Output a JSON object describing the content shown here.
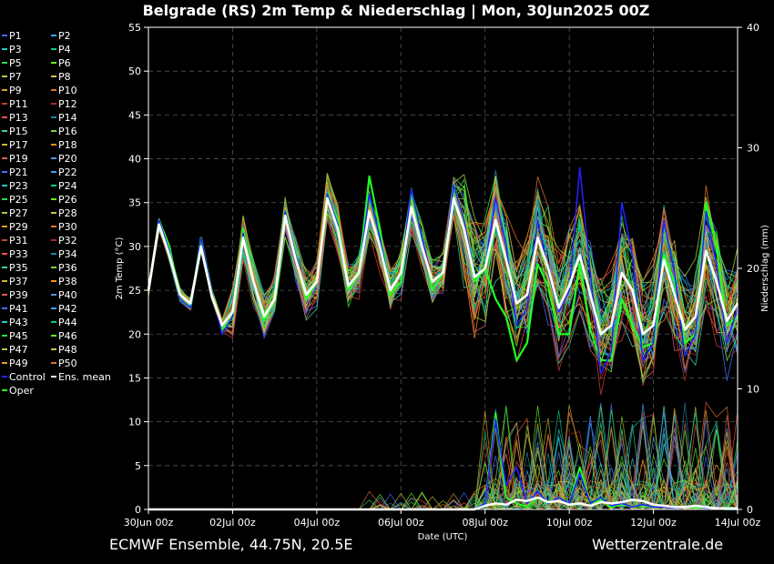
{
  "chart_data": {
    "type": "line",
    "title": "Belgrade  (RS)  2m Temp & Niederschlag | Mon, 30Jun2025 00Z",
    "xlabel": "Date (UTC)",
    "ylabel_left": "2m Temp (°C)",
    "ylabel_right": "Niederschlag (mm)",
    "ylim_left": [
      0,
      55
    ],
    "ylim_right": [
      0,
      40
    ],
    "yticks_left": [
      "0",
      "5",
      "10",
      "15",
      "20",
      "25",
      "30",
      "35",
      "40",
      "45",
      "50",
      "55"
    ],
    "yticks_right": [
      "0",
      "10",
      "20",
      "30",
      "40"
    ],
    "x_range_days": [
      0,
      14
    ],
    "xticks": [
      "30Jun 00z",
      "02Jul 00z",
      "04Jul 00z",
      "06Jul 00z",
      "08Jul 00z",
      "10Jul 00z",
      "12Jul 00z",
      "14Jul 00z"
    ],
    "grid": true,
    "legend_position": "left",
    "legend": [
      "P1",
      "P2",
      "P3",
      "P4",
      "P5",
      "P6",
      "P7",
      "P8",
      "P9",
      "P10",
      "P11",
      "P12",
      "P13",
      "P14",
      "P15",
      "P16",
      "P17",
      "P18",
      "P19",
      "P20",
      "P21",
      "P22",
      "P23",
      "P24",
      "P25",
      "P26",
      "P27",
      "P28",
      "P29",
      "P30",
      "P31",
      "P32",
      "P33",
      "P34",
      "P35",
      "P36",
      "P37",
      "P38",
      "P39",
      "P40",
      "P41",
      "P42",
      "P43",
      "P44",
      "P45",
      "P46",
      "P47",
      "P48",
      "P49",
      "P50",
      "Control",
      "Ens. mean",
      "Oper"
    ],
    "time_step_hours": 6,
    "series": [
      {
        "name": "Ens. mean",
        "color": "#ffffff",
        "values": [
          25,
          32.5,
          29,
          24.5,
          23.5,
          30,
          24.5,
          21,
          22.5,
          31,
          26,
          22,
          24,
          33.5,
          28.5,
          24.5,
          26,
          35.5,
          32,
          25.5,
          27,
          34,
          30,
          25,
          27,
          34.5,
          30,
          26,
          27,
          35.5,
          32,
          26.5,
          27.5,
          33,
          28.5,
          23.5,
          24.5,
          31,
          27.5,
          23,
          25.5,
          29,
          24.5,
          20,
          21,
          27,
          25,
          20,
          21,
          28.5,
          24.5,
          20.5,
          22,
          29.5,
          26,
          21.5,
          23.5
        ]
      },
      {
        "name": "Control",
        "color": "#2222ff",
        "values": [
          25,
          33,
          29.5,
          24,
          23,
          31,
          25,
          20,
          22,
          31.5,
          26,
          22,
          24,
          34,
          29,
          24.5,
          26,
          36,
          32.5,
          25.5,
          27,
          36,
          31,
          25,
          27,
          36.5,
          31,
          26,
          27,
          37,
          33,
          26.5,
          27.5,
          35.5,
          30,
          21,
          23,
          33,
          27,
          22.5,
          25,
          39,
          27,
          15.5,
          18,
          35,
          29,
          17,
          19,
          33,
          27,
          17.5,
          20,
          34,
          28,
          19,
          23
        ]
      },
      {
        "name": "Oper",
        "color": "#22ff22",
        "values": [
          25,
          33,
          30,
          24,
          23,
          31,
          25,
          20.5,
          22,
          32,
          26,
          21.5,
          24,
          34,
          29,
          24,
          26,
          36,
          33,
          25,
          27,
          38,
          32,
          24.5,
          26,
          36,
          31,
          25,
          27,
          37,
          33,
          26,
          27.5,
          24,
          22,
          17,
          19,
          28,
          25.5,
          20,
          20,
          28,
          20.5,
          17,
          17,
          24,
          21,
          18.5,
          19,
          29,
          26,
          19,
          20,
          35,
          30,
          21,
          22
        ]
      }
    ],
    "precip_mean": [
      0,
      0,
      0,
      0,
      0,
      0,
      0,
      0,
      0,
      0,
      0,
      0,
      0,
      0,
      0,
      0,
      0,
      0,
      0,
      0,
      0,
      0,
      0,
      0,
      0,
      0,
      0,
      0,
      0,
      0,
      0,
      0,
      0.3,
      0.5,
      0.4,
      0.8,
      0.7,
      1.0,
      0.6,
      0.7,
      0.4,
      0.5,
      0.3,
      0.6,
      0.5,
      0.6,
      0.8,
      0.7,
      0.4,
      0.3,
      0.2,
      0.2,
      0.3,
      0.2,
      0.1,
      0.1,
      0.1
    ],
    "precip_control": [
      0,
      0,
      0,
      0,
      0,
      0,
      0,
      0,
      0,
      0,
      0,
      0,
      0,
      0,
      0,
      0,
      0,
      0,
      0,
      0,
      0,
      0,
      0,
      0,
      0,
      0,
      0,
      0,
      0,
      0,
      0,
      0,
      0.5,
      7.5,
      2,
      3.5,
      0.5,
      1.5,
      0.5,
      1,
      0.5,
      3,
      0.5,
      1,
      0.3,
      0.5,
      0.2,
      0.4,
      0.2,
      0.2,
      0.1,
      0.2,
      0.3,
      0.1,
      0.1,
      0,
      0
    ],
    "precip_oper": [
      0,
      0,
      0,
      0,
      0,
      0,
      0,
      0,
      0,
      0,
      0,
      0,
      0,
      0,
      0,
      0,
      0,
      0,
      0,
      0,
      0,
      0,
      0,
      0,
      0,
      0,
      0,
      0,
      0,
      0,
      0,
      0,
      0.5,
      8,
      1,
      0.5,
      0.2,
      1,
      0.5,
      1,
      0.5,
      3.5,
      0.5,
      0.8,
      0.2,
      0.4,
      0.2,
      0.3,
      0.2,
      0.2,
      0.1,
      0.2,
      0.2,
      0.1,
      0.1,
      0,
      0
    ]
  },
  "footer": {
    "left": "ECMWF Ensemble, 44.75N, 20.5E",
    "right": "Wetterzentrale.de"
  }
}
